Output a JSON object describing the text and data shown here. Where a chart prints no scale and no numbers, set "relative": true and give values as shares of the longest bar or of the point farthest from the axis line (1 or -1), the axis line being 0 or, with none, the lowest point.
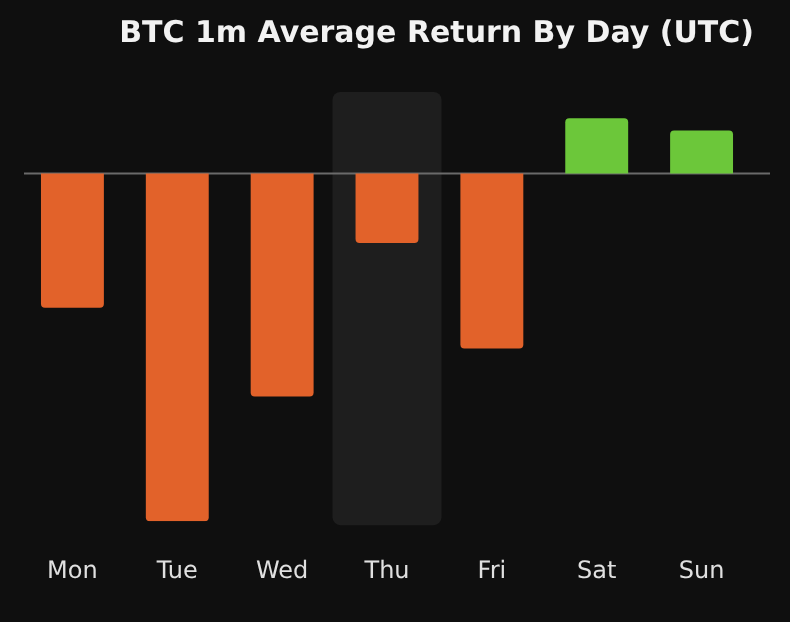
{
  "chart_data": {
    "type": "bar",
    "title": "BTC 1m Average Return By Day (UTC)",
    "relative": true,
    "categories": [
      "Mon",
      "Tue",
      "Wed",
      "Thu",
      "Fri",
      "Sat",
      "Sun"
    ],
    "values": [
      -0.386,
      -1,
      -0.641,
      -0.2,
      -0.503,
      0.159,
      0.124
    ],
    "colors": [
      "#e2622a",
      "#e2622a",
      "#e2622a",
      "#e2622a",
      "#e2622a",
      "#6cc73a",
      "#6cc73a"
    ],
    "bands": [
      {
        "axis": "x",
        "from": "Thu",
        "to": "Thu",
        "color": "#1e1e1e"
      }
    ]
  }
}
